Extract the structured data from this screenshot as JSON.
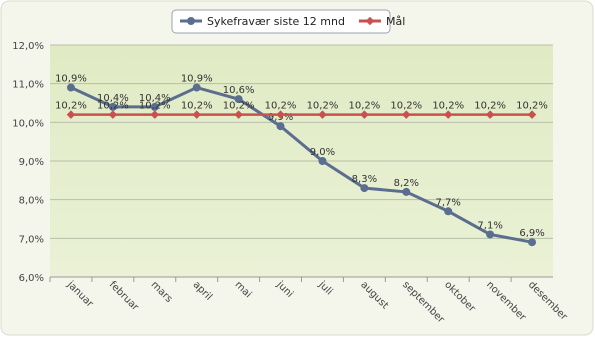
{
  "chart_data": {
    "type": "line",
    "categories": [
      "januar",
      "februar",
      "mars",
      "april",
      "mai",
      "juni",
      "juli",
      "august",
      "september",
      "oktober",
      "november",
      "desember"
    ],
    "series": [
      {
        "name": "Sykefravær siste 12 mnd",
        "color": "#5b6e8f",
        "values": [
          10.9,
          10.4,
          10.4,
          10.9,
          10.6,
          9.9,
          9.0,
          8.3,
          8.2,
          7.7,
          7.1,
          6.9
        ],
        "value_labels": [
          "10,9%",
          "10,4%",
          "10,4%",
          "10,9%",
          "10,6%",
          "9,9%",
          "9,0%",
          "8,3%",
          "8,2%",
          "7,7%",
          "7,1%",
          "6,9%"
        ]
      },
      {
        "name": "Mål",
        "color": "#c9504e",
        "values": [
          10.2,
          10.2,
          10.2,
          10.2,
          10.2,
          10.2,
          10.2,
          10.2,
          10.2,
          10.2,
          10.2,
          10.2
        ],
        "value_labels": [
          "10,2%",
          "10,2%",
          "10,2%",
          "10,2%",
          "10,2%",
          "10,2%",
          "10,2%",
          "10,2%",
          "10,2%",
          "10,2%",
          "10,2%",
          "10,2%"
        ]
      }
    ],
    "ylim": [
      6,
      12
    ],
    "yticks": [
      {
        "value": 6,
        "label": "6,0%"
      },
      {
        "value": 7,
        "label": "7,0%"
      },
      {
        "value": 8,
        "label": "8,0%"
      },
      {
        "value": 9,
        "label": "9,0%"
      },
      {
        "value": 10,
        "label": "10,0%"
      },
      {
        "value": 11,
        "label": "11,0%"
      },
      {
        "value": 12,
        "label": "12,0%"
      }
    ],
    "grid": true
  }
}
